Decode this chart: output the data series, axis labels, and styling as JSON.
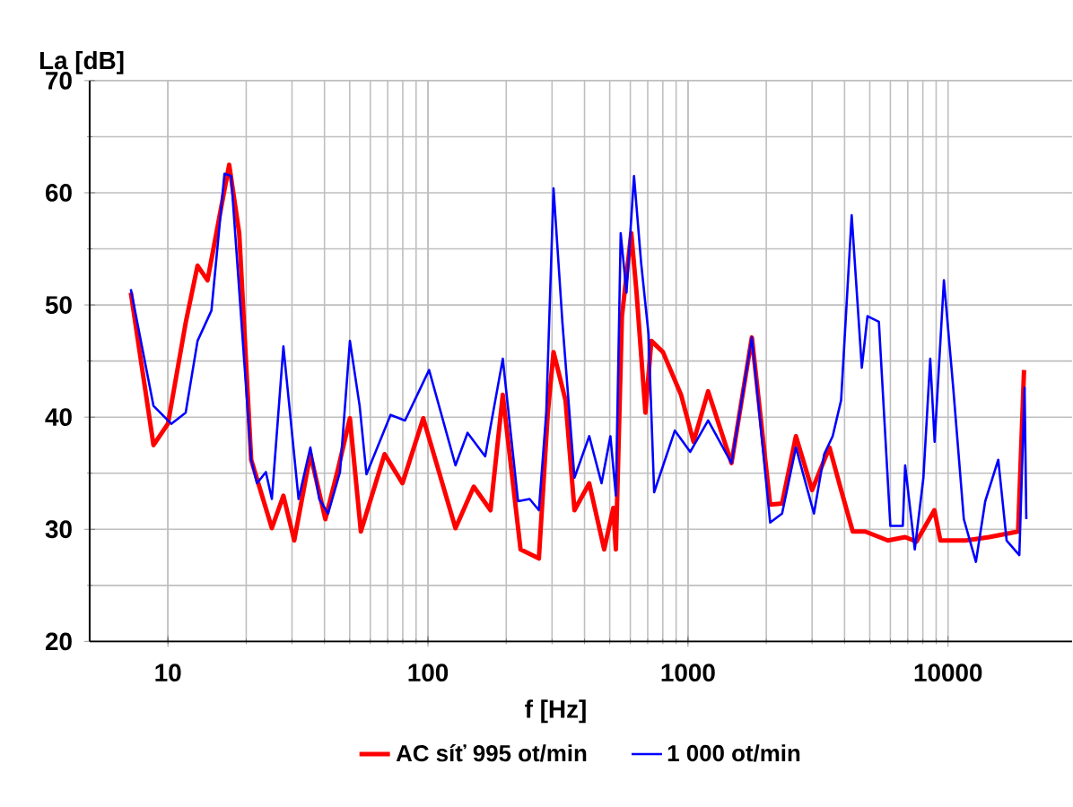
{
  "chart_data": {
    "type": "line",
    "xlabel": "f [Hz]",
    "ylabel": "La [dB]",
    "log": "x",
    "xlim": [
      5,
      30000
    ],
    "ylim": [
      20,
      70
    ],
    "xticks": [
      10,
      100,
      1000,
      10000
    ],
    "yticks": [
      20,
      30,
      40,
      50,
      60,
      70
    ],
    "grid": true,
    "legend": "bottom",
    "line_style": "solid",
    "series": [
      {
        "name": "AC síť 995 ot/min",
        "color": "#ff0000",
        "x": [
          7.2,
          8.8,
          10,
          11.7,
          13,
          14.2,
          17.2,
          18.8,
          20.9,
          25.1,
          27.8,
          30.6,
          35.3,
          40.3,
          44.8,
          50.1,
          55.2,
          68.1,
          79.8,
          95.9,
          127.6,
          150,
          174,
          194,
          227,
          267,
          289,
          304,
          338,
          366,
          417,
          476,
          516,
          528,
          557,
          605,
          634,
          686,
          723,
          801,
          940,
          1050,
          1195,
          1470,
          1760,
          2070,
          2300,
          2600,
          3000,
          3500,
          3880,
          4300,
          4800,
          5870,
          6840,
          7560,
          8860,
          9340,
          11700,
          14400,
          18600,
          19600
        ],
        "values": [
          51.1,
          37.5,
          39.4,
          48.4,
          53.5,
          52.2,
          62.5,
          56.4,
          36.2,
          30.1,
          33,
          29,
          36.7,
          30.9,
          35.1,
          39.9,
          29.8,
          36.7,
          34.1,
          39.9,
          30.1,
          33.8,
          31.7,
          42.0,
          28.2,
          27.4,
          40.4,
          45.8,
          41.5,
          31.7,
          34.1,
          28.2,
          31.9,
          28.2,
          49,
          56.4,
          51.1,
          40.4,
          46.8,
          45.8,
          42,
          37.8,
          42.3,
          35.9,
          47.1,
          32.2,
          32.3,
          38.3,
          33.5,
          37.3,
          33.5,
          29.8,
          29.8,
          29,
          29.3,
          28.9,
          31.7,
          29,
          29,
          29.3,
          29.8,
          44.2
        ]
      },
      {
        "name": "1 000 ot/min",
        "color": "#0000ff",
        "x": [
          7.2,
          8.8,
          10.3,
          11.7,
          13,
          14.7,
          16.5,
          17.5,
          20.9,
          22,
          23.8,
          25.1,
          27.8,
          31.8,
          35.3,
          38.2,
          41.3,
          45.9,
          50.1,
          54.6,
          58,
          71.8,
          81.6,
          101,
          127.6,
          142,
          166,
          194,
          222,
          246,
          267,
          285,
          304,
          329,
          366,
          417,
          465,
          503,
          528,
          551,
          580,
          620,
          660,
          705,
          741,
          890,
          1020,
          1195,
          1470,
          1760,
          2070,
          2300,
          2600,
          3050,
          3340,
          3600,
          3880,
          4260,
          4660,
          4900,
          5420,
          6000,
          6700,
          6840,
          7450,
          8040,
          8540,
          8880,
          9640,
          10470,
          11500,
          12800,
          13900,
          15600,
          16800,
          18800,
          19700,
          20000
        ],
        "values": [
          51.4,
          41,
          39.4,
          40.4,
          46.8,
          49.5,
          61.7,
          61.5,
          36.2,
          34.1,
          35.1,
          32.7,
          46.3,
          32.7,
          37.3,
          32.7,
          31.4,
          35.1,
          46.8,
          41,
          34.9,
          40.2,
          39.7,
          44.2,
          35.7,
          38.6,
          36.5,
          45.2,
          32.5,
          32.7,
          31.7,
          40.4,
          60.4,
          48.4,
          34.6,
          38.3,
          34.1,
          38.3,
          33,
          56.4,
          51.1,
          61.5,
          53.8,
          47.4,
          33.3,
          38.8,
          36.9,
          39.7,
          35.9,
          47.1,
          30.6,
          31.4,
          37.3,
          31.4,
          36.7,
          38.3,
          41.5,
          58.0,
          44.4,
          49,
          48.5,
          30.3,
          30.3,
          35.7,
          28.2,
          34.6,
          45.2,
          37.8,
          52.2,
          42.6,
          30.9,
          27.1,
          32.5,
          36.2,
          29,
          27.7,
          42.6,
          30.9
        ]
      }
    ]
  }
}
